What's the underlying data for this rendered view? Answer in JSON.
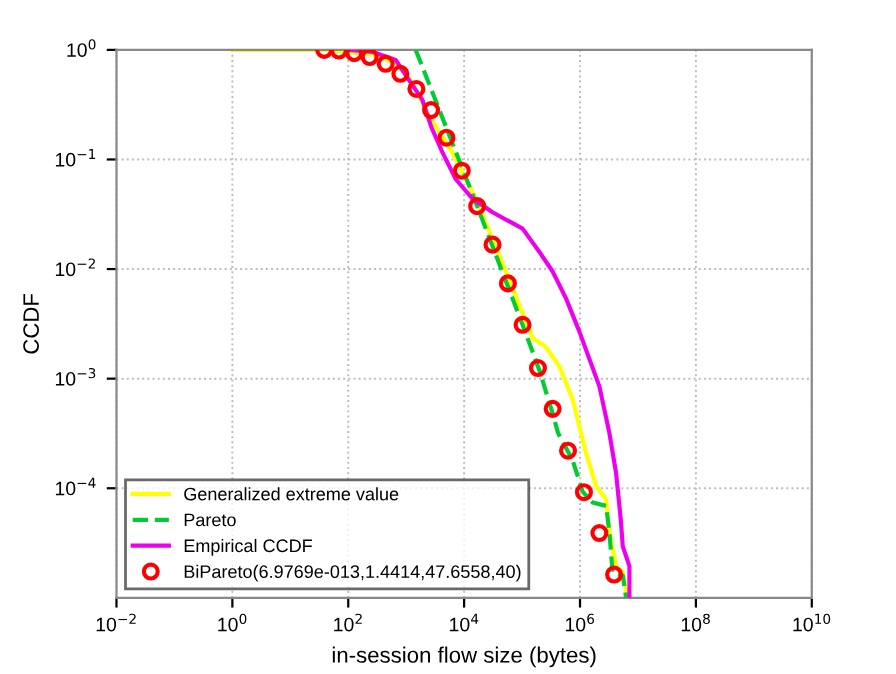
{
  "chart_data": {
    "type": "line",
    "xlabel": "in-session flow size (bytes)",
    "ylabel": "CCDF",
    "log": "xy",
    "xlim": [
      0.01,
      10000000000.0
    ],
    "ylim": [
      1e-05,
      1
    ],
    "xticks": [
      {
        "value": 0.01,
        "label": "10$^{−2}$"
      },
      {
        "value": 1,
        "label": "10$^{0}$"
      },
      {
        "value": 100,
        "label": "10$^{2}$"
      },
      {
        "value": 10000,
        "label": "10$^{4}$"
      },
      {
        "value": 1000000,
        "label": "10$^{6}$"
      },
      {
        "value": 100000000,
        "label": "10$^{8}$"
      },
      {
        "value": 10000000000,
        "label": "10$^{10}$"
      }
    ],
    "yticks": [
      {
        "value": 0.0001,
        "label": "10$^{−4}$"
      },
      {
        "value": 0.001,
        "label": "10$^{−3}$"
      },
      {
        "value": 0.01,
        "label": "10$^{−2}$"
      },
      {
        "value": 0.1,
        "label": "10$^{−1}$"
      },
      {
        "value": 1,
        "label": "10$^{0}$"
      }
    ],
    "grid": true,
    "legend": "bottom left",
    "series": [
      {
        "name": "Generalized extreme value",
        "color": "#ffff00",
        "line_style": "solid",
        "marker": "none",
        "x": [
          1,
          40.6,
          260,
          658,
          1280,
          2480,
          6280,
          16800,
          52600,
          152000,
          258000,
          440000,
          747000,
          1270000,
          1890000,
          2820000,
          3210000,
          4190000,
          5470000,
          6580000
        ],
        "values": [
          1,
          1,
          0.91,
          0.76,
          0.5,
          0.25,
          0.116,
          0.041,
          0.0095,
          0.00235,
          0.00195,
          0.00129,
          0.00065,
          0.00021,
          0.000105,
          7.9e-05,
          4e-05,
          1.95e-05,
          1.7e-05,
          1e-05
        ]
      },
      {
        "name": "Pareto",
        "color": "#00cc33",
        "line_style": "dashed",
        "marker": "none",
        "x": [
          1460,
          16800,
          102000,
          198000,
          337000,
          417000,
          747000,
          1110000,
          1660000,
          2820000,
          3210000,
          3650000,
          5470000,
          6240000
        ],
        "values": [
          1,
          0.0375,
          0.0031,
          0.0012,
          0.00048,
          0.00032,
          0.00018,
          9.3e-05,
          7.4e-05,
          6.9e-05,
          4e-05,
          1.7e-05,
          1.6e-05,
          1e-05
        ]
      },
      {
        "name": "Empirical CCDF",
        "color": "#ee00ee",
        "line_style": "solid",
        "marker": "none",
        "x": [
          100,
          260,
          658,
          1120,
          1905,
          2690,
          4220,
          7180,
          13900,
          30900,
          102000,
          198000,
          337000,
          573000,
          973000,
          2160000,
          3210000,
          4190000,
          5050000,
          5470000,
          7130000,
          7130000
        ],
        "values": [
          1,
          0.96,
          0.81,
          0.53,
          0.35,
          0.2,
          0.116,
          0.066,
          0.044,
          0.033,
          0.0234,
          0.0144,
          0.0095,
          0.0054,
          0.0027,
          0.00085,
          0.00032,
          0.000138,
          5.2e-05,
          2.95e-05,
          1.95e-05,
          1e-05
        ]
      },
      {
        "name": "BiPareto(6.9769e-013,1.4414,47.6558,40)",
        "type": "scatter",
        "color": "#ff0000",
        "marker": "circle",
        "x": [
          38.5,
          69,
          127,
          234,
          443,
          793,
          1500,
          2690,
          4950,
          9120,
          16800,
          30900,
          56900,
          102000,
          188000,
          337000,
          621000,
          1170000,
          2160000,
          3870000
        ],
        "values": [
          1,
          0.986,
          0.933,
          0.86,
          0.746,
          0.605,
          0.44,
          0.282,
          0.158,
          0.079,
          0.0375,
          0.0167,
          0.0074,
          0.0031,
          0.00125,
          0.00053,
          0.00022,
          9.2e-05,
          3.9e-05,
          1.63e-05
        ]
      }
    ]
  }
}
